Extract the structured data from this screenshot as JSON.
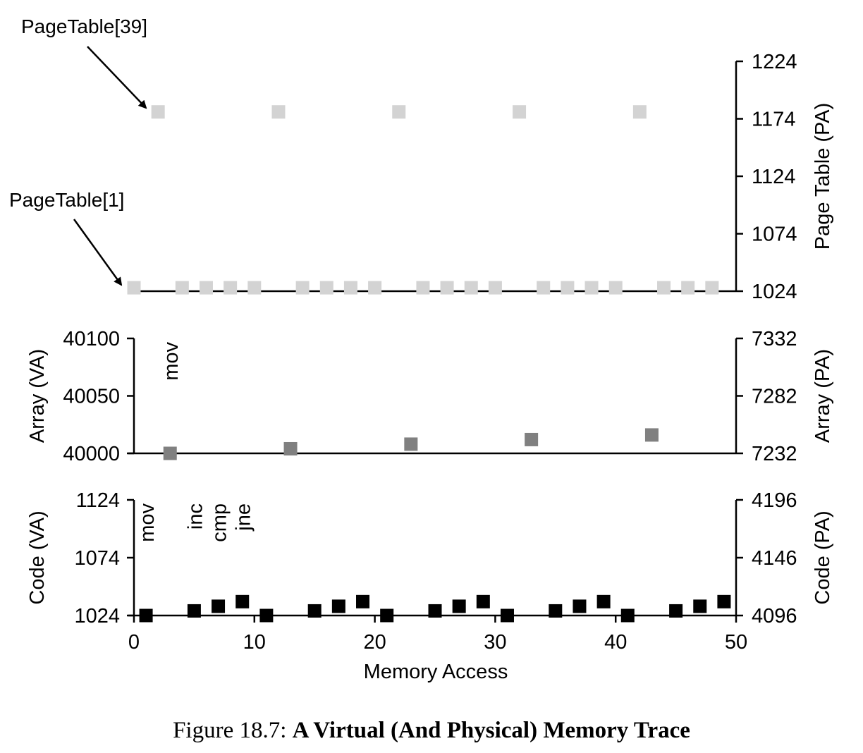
{
  "chart_data": [
    {
      "name": "page-table",
      "type": "scatter",
      "x_range": [
        0,
        50
      ],
      "y_range_right": [
        1024,
        1224
      ],
      "y_ticks_right": [
        "1224",
        "1174",
        "1124",
        "1074",
        "1024"
      ],
      "ylabel_right": "Page Table (PA)",
      "color": "#d3d3d3",
      "annotations": [
        {
          "text": "PageTable[39]",
          "x": 2,
          "y": 1180
        },
        {
          "text": "PageTable[1]",
          "x": 0,
          "y": 1027
        }
      ],
      "points": [
        {
          "x": 0,
          "y": 1027
        },
        {
          "x": 2,
          "y": 1180
        },
        {
          "x": 4,
          "y": 1027
        },
        {
          "x": 6,
          "y": 1027
        },
        {
          "x": 8,
          "y": 1027
        },
        {
          "x": 10,
          "y": 1027
        },
        {
          "x": 12,
          "y": 1180
        },
        {
          "x": 14,
          "y": 1027
        },
        {
          "x": 16,
          "y": 1027
        },
        {
          "x": 18,
          "y": 1027
        },
        {
          "x": 20,
          "y": 1027
        },
        {
          "x": 22,
          "y": 1180
        },
        {
          "x": 24,
          "y": 1027
        },
        {
          "x": 26,
          "y": 1027
        },
        {
          "x": 28,
          "y": 1027
        },
        {
          "x": 30,
          "y": 1027
        },
        {
          "x": 32,
          "y": 1180
        },
        {
          "x": 34,
          "y": 1027
        },
        {
          "x": 36,
          "y": 1027
        },
        {
          "x": 38,
          "y": 1027
        },
        {
          "x": 40,
          "y": 1027
        },
        {
          "x": 42,
          "y": 1180
        },
        {
          "x": 44,
          "y": 1027
        },
        {
          "x": 46,
          "y": 1027
        },
        {
          "x": 48,
          "y": 1027
        }
      ]
    },
    {
      "name": "array",
      "type": "scatter",
      "x_range": [
        0,
        50
      ],
      "y_range_left": [
        40000,
        40100
      ],
      "y_ticks_left": [
        "40100",
        "40050",
        "40000"
      ],
      "ylabel_left": "Array (VA)",
      "y_range_right": [
        7232,
        7332
      ],
      "y_ticks_right": [
        "7332",
        "7282",
        "7232"
      ],
      "ylabel_right": "Array (PA)",
      "color": "#808080",
      "instruction_labels": [
        {
          "text": "mov",
          "x": 3
        }
      ],
      "points": [
        {
          "x": 3,
          "y": 40000
        },
        {
          "x": 13,
          "y": 40004
        },
        {
          "x": 23,
          "y": 40008
        },
        {
          "x": 33,
          "y": 40012
        },
        {
          "x": 43,
          "y": 40016
        }
      ]
    },
    {
      "name": "code",
      "type": "scatter",
      "x_range": [
        0,
        50
      ],
      "x_ticks": [
        "0",
        "10",
        "20",
        "30",
        "40",
        "50"
      ],
      "xlabel": "Memory Access",
      "y_range_left": [
        1024,
        1124
      ],
      "y_ticks_left": [
        "1124",
        "1074",
        "1024"
      ],
      "ylabel_left": "Code (VA)",
      "y_range_right": [
        4096,
        4196
      ],
      "y_ticks_right": [
        "4196",
        "4146",
        "4096"
      ],
      "ylabel_right": "Code (PA)",
      "color": "#000000",
      "instruction_labels": [
        {
          "text": "mov",
          "x": 1
        },
        {
          "text": "inc",
          "x": 5
        },
        {
          "text": "cmp",
          "x": 7
        },
        {
          "text": "jne",
          "x": 9
        }
      ],
      "points": [
        {
          "x": 1,
          "y": 1024
        },
        {
          "x": 5,
          "y": 1028
        },
        {
          "x": 7,
          "y": 1032
        },
        {
          "x": 9,
          "y": 1036
        },
        {
          "x": 11,
          "y": 1024
        },
        {
          "x": 15,
          "y": 1028
        },
        {
          "x": 17,
          "y": 1032
        },
        {
          "x": 19,
          "y": 1036
        },
        {
          "x": 21,
          "y": 1024
        },
        {
          "x": 25,
          "y": 1028
        },
        {
          "x": 27,
          "y": 1032
        },
        {
          "x": 29,
          "y": 1036
        },
        {
          "x": 31,
          "y": 1024
        },
        {
          "x": 35,
          "y": 1028
        },
        {
          "x": 37,
          "y": 1032
        },
        {
          "x": 39,
          "y": 1036
        },
        {
          "x": 41,
          "y": 1024
        },
        {
          "x": 45,
          "y": 1028
        },
        {
          "x": 47,
          "y": 1032
        },
        {
          "x": 49,
          "y": 1036
        }
      ]
    }
  ],
  "caption": {
    "prefix": "Figure 18.7: ",
    "title": "A Virtual (And Physical) Memory Trace"
  }
}
